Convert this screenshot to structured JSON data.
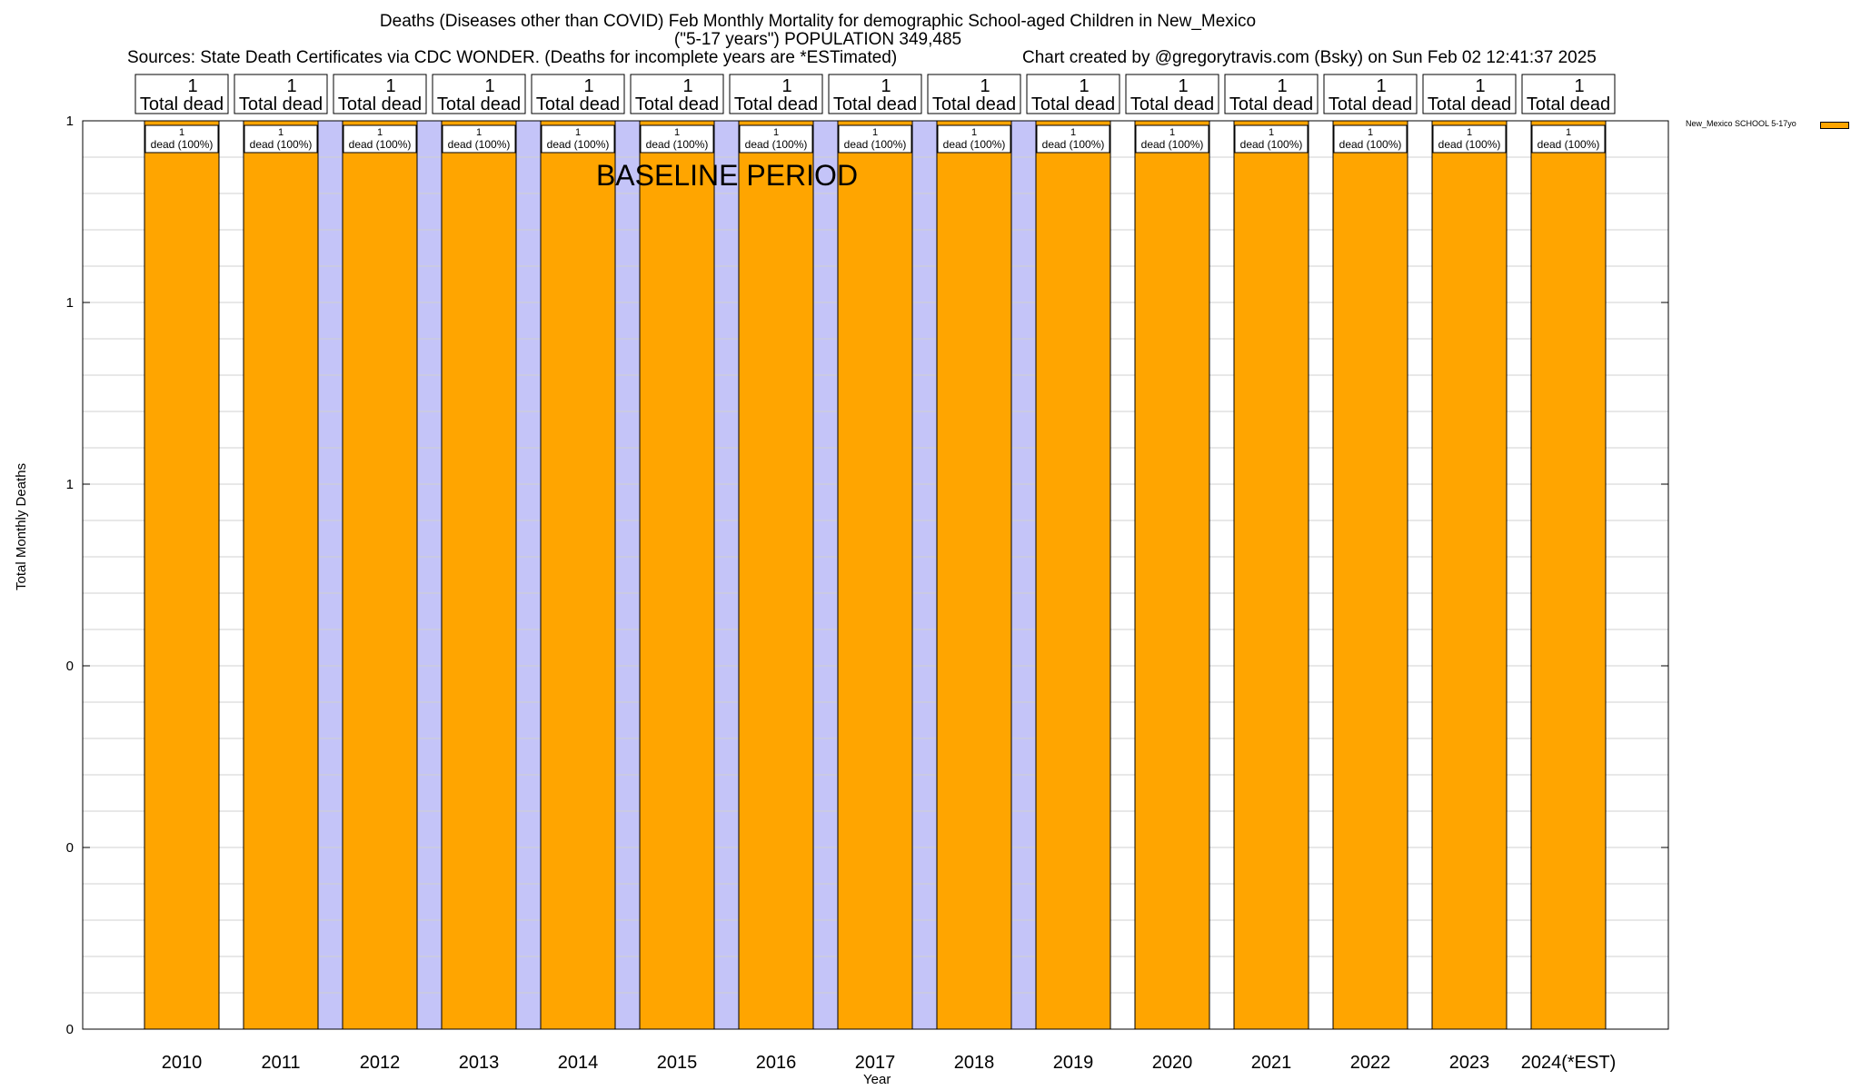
{
  "chart_data": {
    "type": "bar",
    "title": "Deaths (Diseases other than COVID) Feb Monthly Mortality for demographic School-aged Children in New_Mexico",
    "subtitle": "(\"5-17 years\") POPULATION 349,485",
    "sources": "Sources: State Death Certificates via CDC WONDER. (Deaths for incomplete years are *ESTimated)",
    "credit": "Chart created by @gregorytravis.com (Bsky) on Sun Feb 02 12:41:37 2025",
    "xlabel": "Year",
    "ylabel": "Total Monthly Deaths",
    "categories": [
      "2010",
      "2011",
      "2012",
      "2013",
      "2014",
      "2015",
      "2016",
      "2017",
      "2018",
      "2019",
      "2020",
      "2021",
      "2022",
      "2023",
      "2024(*EST)"
    ],
    "series": [
      {
        "name": "New_Mexico SCHOOL 5-17yo",
        "values": [
          1,
          1,
          1,
          1,
          1,
          1,
          1,
          1,
          1,
          1,
          1,
          1,
          1,
          1,
          1
        ],
        "color": "#ffa500"
      }
    ],
    "top_labels": {
      "value": "1",
      "text": "Total dead"
    },
    "bar_labels": {
      "value": "1",
      "text": "dead (100%)"
    },
    "ytick_labels": [
      "0",
      "0",
      "0",
      "1",
      "1",
      "1"
    ],
    "ylim": [
      0,
      1
    ],
    "baseline_period": {
      "label": "BASELINE PERIOD",
      "start": "2012",
      "end": "2019",
      "color": "#c4c4f8"
    },
    "grid": true,
    "legend_position": "top-right"
  }
}
